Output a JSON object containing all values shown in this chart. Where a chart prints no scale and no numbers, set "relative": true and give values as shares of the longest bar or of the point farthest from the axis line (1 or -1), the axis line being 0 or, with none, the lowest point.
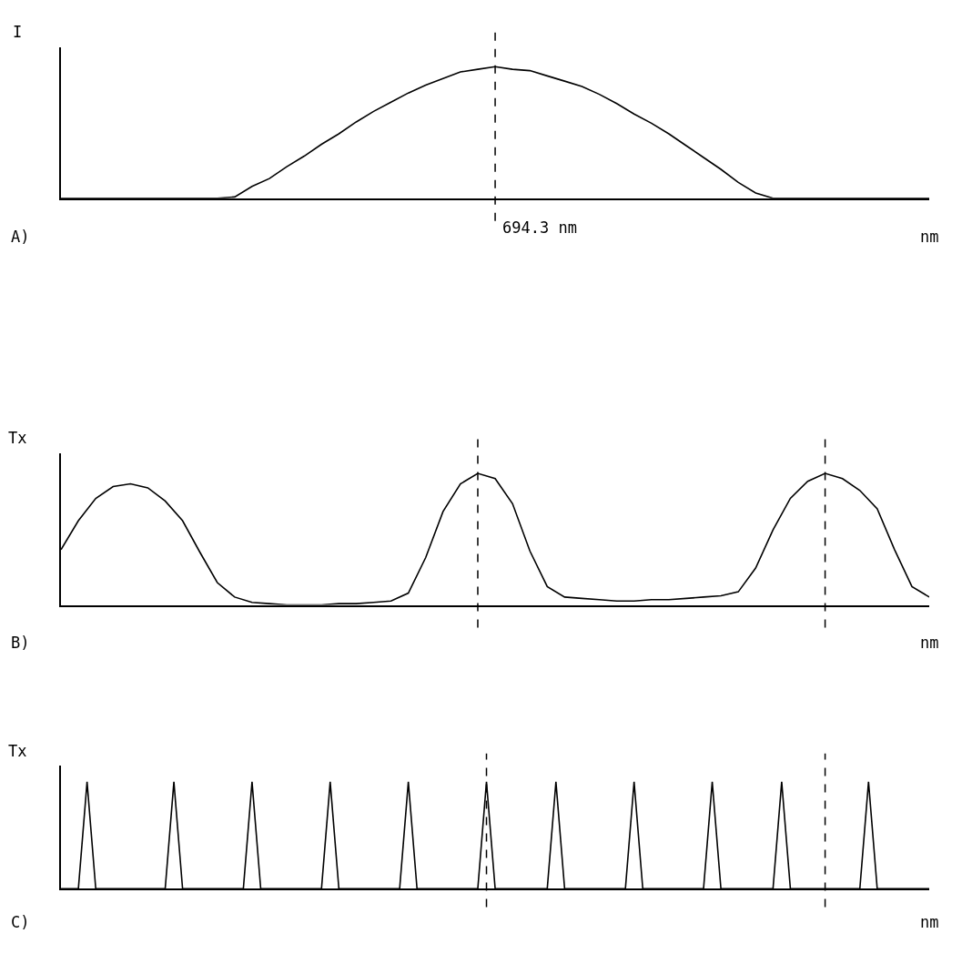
{
  "chart_data": [
    {
      "type": "line",
      "title": "A)",
      "xlabel": "nm",
      "ylabel": "I",
      "relative": true,
      "categories": [
        null,
        null,
        null,
        null,
        null,
        null,
        null,
        null,
        null,
        null,
        null,
        null,
        null,
        null,
        null,
        null,
        null,
        null,
        null,
        null,
        null,
        null,
        null,
        null,
        null,
        null,
        null,
        null,
        null,
        null,
        null,
        null,
        null,
        null,
        null,
        null,
        null,
        null,
        null,
        null,
        null,
        null,
        null,
        null,
        null,
        null,
        null,
        null,
        null,
        null,
        null
      ],
      "series": [
        {
          "color": "#000000",
          "values": [
            0,
            0,
            0,
            0,
            0,
            0,
            0,
            0,
            0,
            0,
            0.01,
            0.09,
            0.15,
            0.24,
            0.32,
            0.41,
            0.49,
            0.58,
            0.66,
            0.73,
            0.8,
            0.86,
            0.91,
            0.96,
            0.98,
            1,
            0.98,
            0.97,
            0.93,
            0.89,
            0.85,
            0.79,
            0.72,
            0.64,
            0.57,
            0.49,
            0.4,
            0.31,
            0.22,
            0.12,
            0.04,
            0,
            0,
            0,
            0,
            0,
            0,
            0,
            0,
            0,
            0
          ]
        }
      ],
      "annotations": [
        "694.3 nm"
      ]
    },
    {
      "type": "line",
      "title": "B)",
      "xlabel": "nm",
      "ylabel": "Tx",
      "relative": true,
      "categories": [
        null,
        null,
        null,
        null,
        null,
        null,
        null,
        null,
        null,
        null,
        null,
        null,
        null,
        null,
        null,
        null,
        null,
        null,
        null,
        null,
        null,
        null,
        null,
        null,
        null,
        null,
        null,
        null,
        null,
        null,
        null,
        null,
        null,
        null,
        null,
        null,
        null,
        null,
        null,
        null,
        null,
        null,
        null,
        null,
        null,
        null,
        null,
        null,
        null,
        null,
        null
      ],
      "series": [
        {
          "color": "#000000",
          "values": [
            0.42,
            0.64,
            0.81,
            0.9,
            0.92,
            0.89,
            0.79,
            0.64,
            0.4,
            0.17,
            0.06,
            0.02,
            0.01,
            0,
            0,
            0,
            0.01,
            0.01,
            0.02,
            0.03,
            0.09,
            0.36,
            0.71,
            0.92,
            1,
            0.96,
            0.77,
            0.41,
            0.14,
            0.06,
            0.05,
            0.04,
            0.03,
            0.03,
            0.04,
            0.04,
            0.05,
            0.06,
            0.07,
            0.1,
            0.28,
            0.57,
            0.81,
            0.94,
            1,
            0.96,
            0.87,
            0.73,
            0.42,
            0.14,
            0.06
          ]
        }
      ]
    },
    {
      "type": "line",
      "title": "C)",
      "xlabel": "nm",
      "ylabel": "Tx",
      "relative": true,
      "categories": [
        null,
        null,
        null,
        null,
        null,
        null,
        null,
        null,
        null,
        null,
        null,
        null,
        null,
        null,
        null,
        null,
        null,
        null,
        null,
        null,
        null,
        null,
        null,
        null,
        null,
        null,
        null,
        null,
        null,
        null,
        null,
        null,
        null,
        null,
        null,
        null,
        null,
        null,
        null,
        null,
        null,
        null,
        null,
        null,
        null,
        null,
        null,
        null,
        null,
        null,
        null,
        null,
        null,
        null,
        null,
        null,
        null,
        null,
        null,
        null,
        null,
        null,
        null,
        null,
        null,
        null,
        null,
        null,
        null,
        null,
        null,
        null,
        null,
        null,
        null,
        null,
        null,
        null,
        null,
        null,
        null,
        null,
        null,
        null,
        null,
        null,
        null,
        null,
        null,
        null,
        null,
        null,
        null,
        null,
        null,
        null,
        null,
        null,
        null,
        null,
        null
      ],
      "series": [
        {
          "color": "#000000",
          "values": [
            0,
            0,
            0,
            1,
            0,
            0,
            0,
            0,
            0,
            0,
            0,
            0,
            0,
            1,
            0,
            0,
            0,
            0,
            0,
            0,
            0,
            0,
            1,
            0,
            0,
            0,
            0,
            0,
            0,
            0,
            0,
            1,
            0,
            0,
            0,
            0,
            0,
            0,
            0,
            0,
            1,
            0,
            0,
            0,
            0,
            0,
            0,
            0,
            0,
            1,
            0,
            0,
            0,
            0,
            0,
            0,
            0,
            1,
            0,
            0,
            0,
            0,
            0,
            0,
            0,
            0,
            1,
            0,
            0,
            0,
            0,
            0,
            0,
            0,
            0,
            1,
            0,
            0,
            0,
            0,
            0,
            0,
            0,
            1,
            0,
            0,
            0,
            0,
            0,
            0,
            0,
            0,
            0,
            1,
            0,
            0,
            0,
            0,
            0,
            0,
            0
          ]
        }
      ]
    }
  ]
}
